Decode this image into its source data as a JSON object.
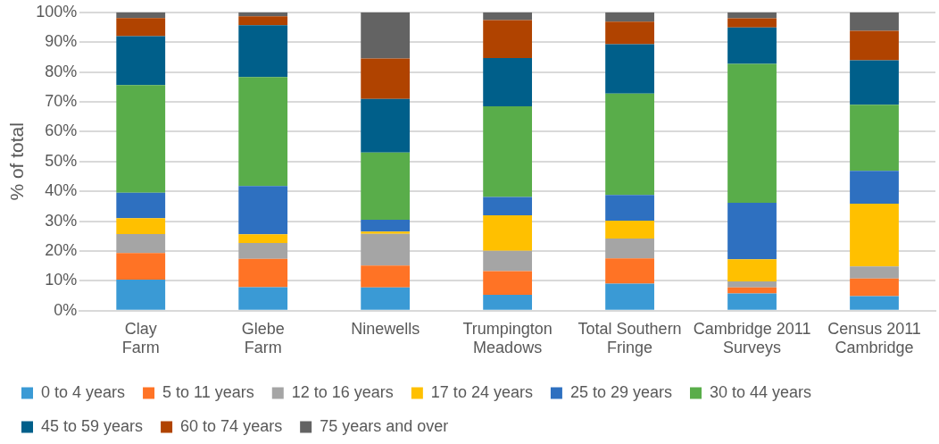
{
  "chart_data": {
    "type": "bar",
    "stacked": true,
    "ylabel": "% of total",
    "categories": [
      "Clay Farm",
      "Glebe Farm",
      "Ninewells",
      "Trumpington Meadows",
      "Total Southern Fringe",
      "Cambridge 2011 Surveys",
      "Census 2011 Cambridge"
    ],
    "ylim": [
      0,
      100
    ],
    "yticks": [
      {
        "value": 0,
        "label": "0%"
      },
      {
        "value": 10,
        "label": "10%"
      },
      {
        "value": 20,
        "label": "20%"
      },
      {
        "value": 30,
        "label": "30%"
      },
      {
        "value": 40,
        "label": "40%"
      },
      {
        "value": 50,
        "label": "50%"
      },
      {
        "value": 60,
        "label": "60%"
      },
      {
        "value": 70,
        "label": "70%"
      },
      {
        "value": 80,
        "label": "80%"
      },
      {
        "value": 90,
        "label": "90%"
      },
      {
        "value": 100,
        "label": "100%"
      }
    ],
    "grid": "y",
    "legend": "bottom",
    "series": [
      {
        "name": "0 to 4 years",
        "color": "#3a9ad5",
        "values": [
          10.4,
          7.9,
          7.8,
          5.3,
          9.1,
          5.8,
          4.9
        ]
      },
      {
        "name": "5 to 11 years",
        "color": "#ff7325",
        "values": [
          8.9,
          9.5,
          7.3,
          8.0,
          8.4,
          2.0,
          5.9
        ]
      },
      {
        "name": "12 to 16 years",
        "color": "#a5a5a5",
        "values": [
          6.4,
          5.3,
          10.7,
          6.8,
          6.7,
          2.0,
          4.0
        ]
      },
      {
        "name": "17 to 24 years",
        "color": "#ffc000",
        "values": [
          5.3,
          2.9,
          0.7,
          11.9,
          6.0,
          7.4,
          21.1
        ]
      },
      {
        "name": "25 to 29 years",
        "color": "#2e70c0",
        "values": [
          8.5,
          16.2,
          4.0,
          6.1,
          8.6,
          19.0,
          11.0
        ]
      },
      {
        "name": "30 to 44 years",
        "color": "#59ad4a",
        "values": [
          36.1,
          36.5,
          22.5,
          30.4,
          34.0,
          46.5,
          22.1
        ]
      },
      {
        "name": "45 to 59 years",
        "color": "#005f8a",
        "values": [
          16.4,
          17.4,
          18.0,
          16.2,
          16.5,
          12.2,
          14.9
        ]
      },
      {
        "name": "60 to 74 years",
        "color": "#b04300",
        "values": [
          6.1,
          3.0,
          13.5,
          12.7,
          7.6,
          3.1,
          9.9
        ]
      },
      {
        "name": "75 years and over",
        "color": "#636363",
        "values": [
          1.9,
          1.3,
          15.5,
          2.6,
          3.1,
          2.0,
          6.2
        ]
      }
    ]
  }
}
